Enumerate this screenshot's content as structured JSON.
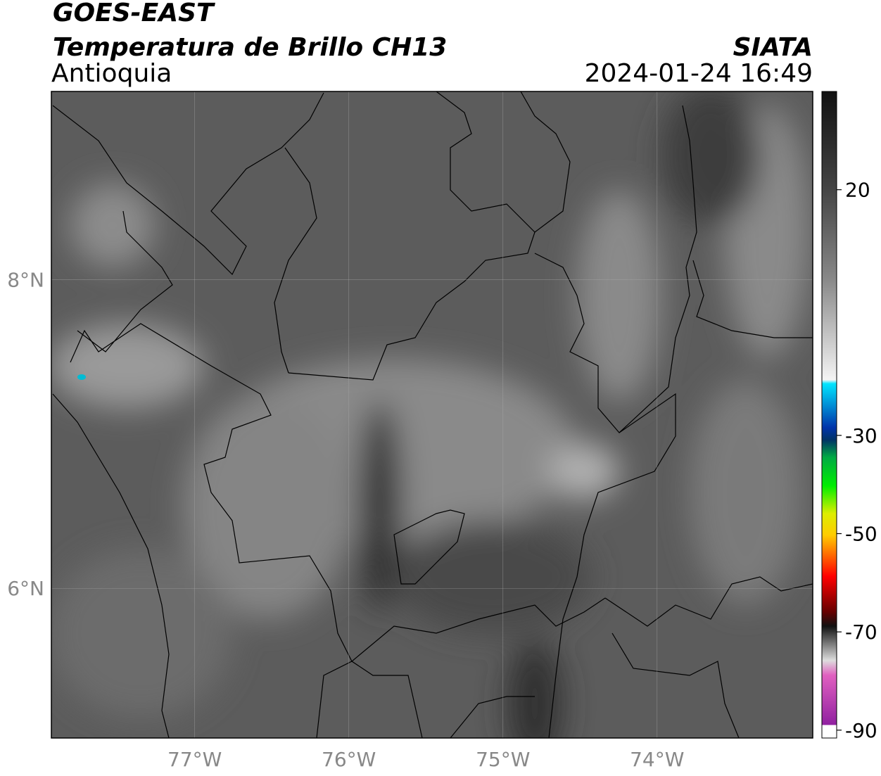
{
  "header": {
    "title": "GOES-EAST",
    "subtitle": "Temperatura de Brillo CH13",
    "region": "Antioquia",
    "source": "SIATA",
    "datetime": "2024-01-24 16:49"
  },
  "map": {
    "xlim": [
      -77.93,
      -72.99
    ],
    "ylim": [
      5.03,
      9.22
    ],
    "xticks": [
      {
        "value": -77,
        "label": "77°W"
      },
      {
        "value": -76,
        "label": "76°W"
      },
      {
        "value": -75,
        "label": "75°W"
      },
      {
        "value": -74,
        "label": "74°W"
      }
    ],
    "yticks": [
      {
        "value": 8,
        "label": "8°N"
      },
      {
        "value": 6,
        "label": "6°N"
      }
    ],
    "grid": true
  },
  "colorbar": {
    "lim": [
      -91.6,
      40
    ],
    "ticks": [
      20,
      -30,
      -50,
      -70,
      -90
    ]
  }
}
